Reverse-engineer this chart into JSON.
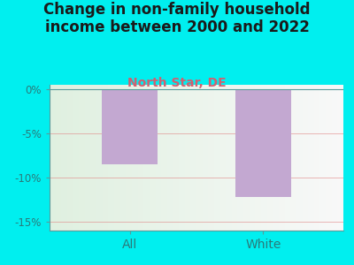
{
  "title": "Change in non-family household\nincome between 2000 and 2022",
  "subtitle": "North Star, DE",
  "categories": [
    "All",
    "White"
  ],
  "values": [
    -8.5,
    -12.2
  ],
  "bar_color": "#c3a8d1",
  "figure_bg_color": "#00efef",
  "plot_bg_left": "#dff0e0",
  "plot_bg_right": "#f0f5f0",
  "title_fontsize": 12,
  "title_color": "#1a1a1a",
  "subtitle_fontsize": 10,
  "subtitle_color": "#d06070",
  "tick_label_color": "#2a7a7a",
  "axis_color": "#5a9a9a",
  "ylim": [
    -16,
    0.5
  ],
  "yticks": [
    0,
    -5,
    -10,
    -15
  ],
  "ytick_labels": [
    "0%",
    "-5%",
    "-10%",
    "-15%"
  ],
  "grid_color": "#e08888",
  "grid_alpha": 0.6,
  "grid_linewidth": 0.7
}
